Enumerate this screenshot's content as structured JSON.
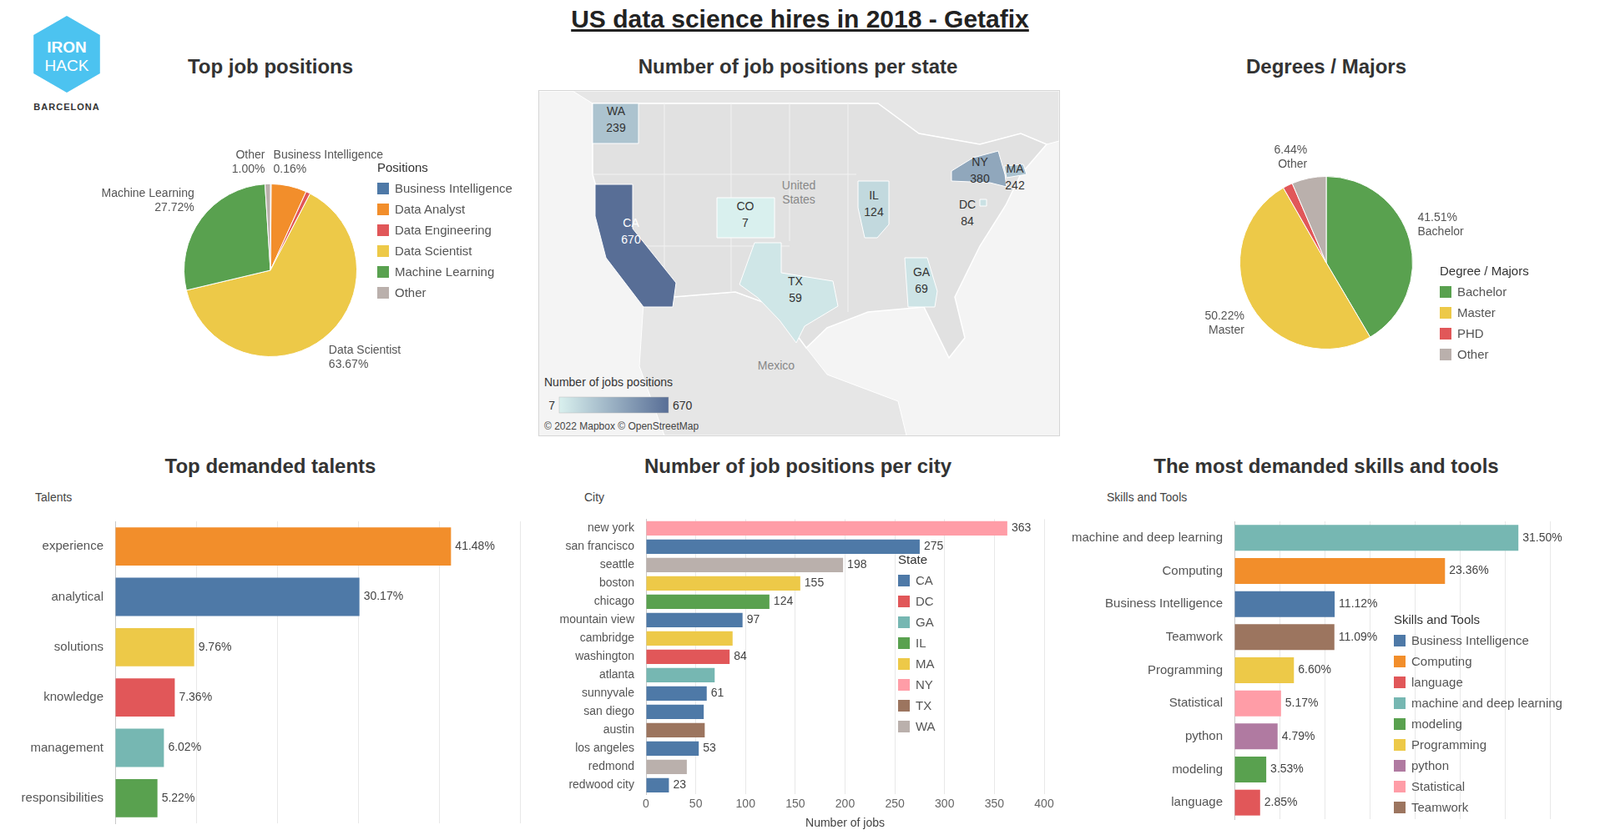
{
  "page_title": "US data science hires in 2018 - Getafix",
  "logo": [
    "IRON",
    "HACK",
    "BARCELONA"
  ],
  "chart_data": [
    {
      "type": "pie",
      "title": "Top job positions",
      "categories": [
        "Business Intelligence",
        "Data Analyst",
        "Data Engineering",
        "Data Scientist",
        "Machine Learning",
        "Other"
      ],
      "values": [
        0.16,
        6.62,
        0.83,
        63.67,
        27.72,
        1.0
      ],
      "value_labels": [
        "0.16%",
        null,
        null,
        "63.67%",
        "27.72%",
        "1.00%"
      ],
      "colors": [
        "#4e79a7",
        "#f28e2b",
        "#e15759",
        "#edc948",
        "#59a14f",
        "#bab0ac"
      ],
      "legend": "right",
      "legend_title": "Positions",
      "data_labels": true
    },
    {
      "type": "map",
      "title": "Number of job positions per state",
      "categories": [
        "WA",
        "CA",
        "CO",
        "TX",
        "IL",
        "GA",
        "NY",
        "MA",
        "DC"
      ],
      "values": [
        239,
        670,
        7,
        59,
        124,
        69,
        380,
        242,
        84
      ],
      "annotations": [
        "United States",
        "Mexico",
        "© 2022 Mapbox © OpenStreetMap"
      ],
      "colorbar": {
        "title": "Number of jobs positions",
        "range": [
          7,
          670
        ],
        "ticks": [
          7,
          670
        ]
      }
    },
    {
      "type": "pie",
      "title": "Degrees / Majors",
      "categories": [
        "Bachelor",
        "Master",
        "PHD",
        "Other"
      ],
      "values": [
        41.51,
        50.22,
        1.83,
        6.44
      ],
      "value_labels": [
        "41.51%",
        "50.22%",
        null,
        "6.44%"
      ],
      "colors": [
        "#59a14f",
        "#edc948",
        "#e15759",
        "#bab0ac"
      ],
      "legend": "right",
      "legend_title": "Degree / Majors",
      "data_labels": true
    },
    {
      "type": "bar",
      "orientation": "horizontal",
      "title": "Top demanded talents",
      "ylabel": "Talents",
      "categories": [
        "experience",
        "analytical",
        "solutions",
        "knowledge",
        "management",
        "responsibilities"
      ],
      "values": [
        41.48,
        30.17,
        9.76,
        7.36,
        6.02,
        5.22
      ],
      "value_labels": [
        "41.48%",
        "30.17%",
        "9.76%",
        "7.36%",
        "6.02%",
        "5.22%"
      ],
      "colors": [
        "#f28e2b",
        "#4e79a7",
        "#edc948",
        "#e15759",
        "#76b7b2",
        "#59a14f"
      ],
      "xlim": [
        0,
        50
      ],
      "xticks": [
        0,
        10,
        20,
        30,
        40,
        50
      ],
      "grid": true,
      "tick_labels": "y",
      "data_labels": true
    },
    {
      "type": "bar",
      "orientation": "horizontal",
      "stacked": true,
      "title": "Number of job positions per city",
      "ylabel": "City",
      "xlabel": "Number of jobs",
      "categories": [
        "new york",
        "san francisco",
        "seattle",
        "boston",
        "chicago",
        "mountain view",
        "cambridge",
        "washington",
        "atlanta",
        "sunnyvale",
        "san diego",
        "austin",
        "los angeles",
        "redmond",
        "redwood city"
      ],
      "series": [
        {
          "name": "CA",
          "color": "#4e79a7",
          "values": [
            null,
            275,
            null,
            null,
            null,
            97,
            null,
            null,
            null,
            61,
            58,
            null,
            53,
            null,
            23
          ],
          "value_labels": [
            null,
            "275",
            null,
            null,
            null,
            "97",
            null,
            null,
            null,
            "61",
            null,
            null,
            "53",
            null,
            "23"
          ]
        },
        {
          "name": "DC",
          "color": "#e15759",
          "values": [
            null,
            null,
            null,
            null,
            null,
            null,
            null,
            84,
            null,
            null,
            null,
            null,
            null,
            null,
            null
          ],
          "value_labels": [
            null,
            null,
            null,
            null,
            null,
            null,
            null,
            "84",
            null,
            null,
            null,
            null,
            null,
            null,
            null
          ]
        },
        {
          "name": "GA",
          "color": "#76b7b2",
          "values": [
            null,
            null,
            null,
            null,
            null,
            null,
            null,
            null,
            69,
            null,
            null,
            null,
            null,
            null,
            null
          ],
          "value_labels": [
            null,
            null,
            null,
            null,
            null,
            null,
            null,
            null,
            null,
            null,
            null,
            null,
            null,
            null,
            null
          ]
        },
        {
          "name": "IL",
          "color": "#59a14f",
          "values": [
            null,
            null,
            null,
            null,
            124,
            null,
            null,
            null,
            null,
            null,
            null,
            null,
            null,
            null,
            null
          ],
          "value_labels": [
            null,
            null,
            null,
            null,
            "124",
            null,
            null,
            null,
            null,
            null,
            null,
            null,
            null,
            null,
            null
          ]
        },
        {
          "name": "MA",
          "color": "#edc948",
          "values": [
            null,
            null,
            null,
            155,
            null,
            null,
            87,
            null,
            null,
            null,
            null,
            null,
            null,
            null,
            null
          ],
          "value_labels": [
            null,
            null,
            null,
            "155",
            null,
            null,
            null,
            null,
            null,
            null,
            null,
            null,
            null,
            null,
            null
          ]
        },
        {
          "name": "NY",
          "color": "#ff9da7",
          "values": [
            363,
            null,
            null,
            null,
            null,
            null,
            null,
            null,
            null,
            null,
            null,
            null,
            null,
            null,
            null
          ],
          "value_labels": [
            "363",
            null,
            null,
            null,
            null,
            null,
            null,
            null,
            null,
            null,
            null,
            null,
            null,
            null,
            null
          ]
        },
        {
          "name": "TX",
          "color": "#9c755f",
          "values": [
            null,
            null,
            null,
            null,
            null,
            null,
            null,
            null,
            null,
            null,
            null,
            59,
            null,
            null,
            null
          ],
          "value_labels": [
            null,
            null,
            null,
            null,
            null,
            null,
            null,
            null,
            null,
            null,
            null,
            null,
            null,
            null,
            null
          ]
        },
        {
          "name": "WA",
          "color": "#bab0ac",
          "values": [
            null,
            null,
            198,
            null,
            null,
            null,
            null,
            null,
            null,
            null,
            null,
            null,
            null,
            41,
            null
          ],
          "value_labels": [
            null,
            null,
            "198",
            null,
            null,
            null,
            null,
            null,
            null,
            null,
            null,
            null,
            null,
            null,
            null
          ]
        }
      ],
      "xlim": [
        0,
        400
      ],
      "xticks": [
        0,
        50,
        100,
        150,
        200,
        250,
        300,
        350,
        400
      ],
      "grid": true,
      "legend": "right",
      "legend_title": "State",
      "data_labels": true
    },
    {
      "type": "bar",
      "orientation": "horizontal",
      "stacked": true,
      "title": "The most demanded skills and tools",
      "ylabel": "Skills and Tools",
      "categories": [
        "machine and deep learning",
        "Computing",
        "Business Intelligence",
        "Teamwork",
        "Programming",
        "Statistical",
        "python",
        "modeling",
        "language"
      ],
      "series": [
        {
          "name": "Business Intelligence",
          "color": "#4e79a7",
          "values": [
            null,
            null,
            11.12,
            null,
            null,
            null,
            null,
            null,
            null
          ],
          "value_labels": [
            null,
            null,
            "11.12%",
            null,
            null,
            null,
            null,
            null,
            null
          ]
        },
        {
          "name": "Computing",
          "color": "#f28e2b",
          "values": [
            null,
            23.36,
            null,
            null,
            null,
            null,
            null,
            null,
            null
          ],
          "value_labels": [
            null,
            "23.36%",
            null,
            null,
            null,
            null,
            null,
            null,
            null
          ]
        },
        {
          "name": "language",
          "color": "#e15759",
          "values": [
            null,
            null,
            null,
            null,
            null,
            null,
            null,
            null,
            2.85
          ],
          "value_labels": [
            null,
            null,
            null,
            null,
            null,
            null,
            null,
            null,
            "2.85%"
          ]
        },
        {
          "name": "machine and deep learning",
          "color": "#76b7b2",
          "values": [
            31.5,
            null,
            null,
            null,
            null,
            null,
            null,
            null,
            null
          ],
          "value_labels": [
            "31.50%",
            null,
            null,
            null,
            null,
            null,
            null,
            null,
            null
          ]
        },
        {
          "name": "modeling",
          "color": "#59a14f",
          "values": [
            null,
            null,
            null,
            null,
            null,
            null,
            null,
            3.53,
            null
          ],
          "value_labels": [
            null,
            null,
            null,
            null,
            null,
            null,
            null,
            "3.53%",
            null
          ]
        },
        {
          "name": "Programming",
          "color": "#edc948",
          "values": [
            null,
            null,
            null,
            null,
            6.6,
            null,
            null,
            null,
            null
          ],
          "value_labels": [
            null,
            null,
            null,
            null,
            "6.60%",
            null,
            null,
            null,
            null
          ]
        },
        {
          "name": "python",
          "color": "#b07aa1",
          "values": [
            null,
            null,
            null,
            null,
            null,
            null,
            4.79,
            null,
            null
          ],
          "value_labels": [
            null,
            null,
            null,
            null,
            null,
            null,
            "4.79%",
            null,
            null
          ]
        },
        {
          "name": "Statistical",
          "color": "#ff9da7",
          "values": [
            null,
            null,
            null,
            null,
            null,
            5.17,
            null,
            null,
            null
          ],
          "value_labels": [
            null,
            null,
            null,
            null,
            null,
            "5.17%",
            null,
            null,
            null
          ]
        },
        {
          "name": "Teamwork",
          "color": "#9c755f",
          "values": [
            null,
            null,
            null,
            11.09,
            null,
            null,
            null,
            null,
            null
          ],
          "value_labels": [
            null,
            null,
            null,
            "11.09%",
            null,
            null,
            null,
            null,
            null
          ]
        }
      ],
      "xlim": [
        0,
        35
      ],
      "xticks": [
        0,
        5,
        10,
        15,
        20,
        25,
        30,
        35
      ],
      "grid": true,
      "tick_labels": "y",
      "legend": "right",
      "legend_title": "Skills and Tools",
      "data_labels": true
    }
  ]
}
